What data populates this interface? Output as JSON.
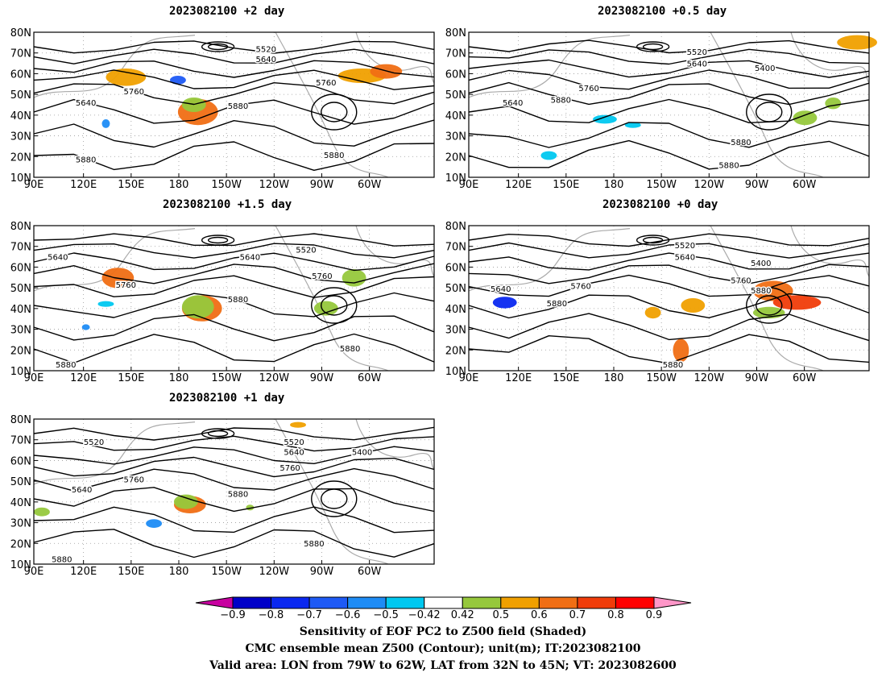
{
  "figure": {
    "caption_line1": "Sensitivity of EOF PC2 to Z500 field (Shaded)",
    "caption_line2": "CMC ensemble mean Z500 (Contour); unit(m); IT:2023082100",
    "caption_line3": "Valid area: LON from 79W to 62W, LAT from 32N to 45N; VT: 2023082600"
  },
  "axes": {
    "x_ticks": [
      "90E",
      "120E",
      "150E",
      "180",
      "150W",
      "120W",
      "90W",
      "60W"
    ],
    "y_ticks": [
      "10N",
      "20N",
      "30N",
      "40N",
      "50N",
      "60N",
      "70N",
      "80N"
    ]
  },
  "panels": [
    {
      "title": "2023082100 +2 day",
      "contour_labels": [
        "5520",
        "5640",
        "5640",
        "5760",
        "5760",
        "5880",
        "5880",
        "5880"
      ]
    },
    {
      "title": "2023082100 +0.5 day",
      "contour_labels": [
        "5520",
        "5640",
        "5400",
        "5640",
        "5880",
        "5760",
        "5880",
        "5880"
      ]
    },
    {
      "title": "2023082100 +1.5 day",
      "contour_labels": [
        "5640",
        "5640",
        "5520",
        "5760",
        "5760",
        "5880",
        "5880",
        "5880"
      ]
    },
    {
      "title": "2023082100 +0 day",
      "contour_labels": [
        "5520",
        "5640",
        "5400",
        "5640",
        "5760",
        "5760",
        "5880",
        "5880",
        "5880"
      ]
    },
    {
      "title": "2023082100 +1 day",
      "contour_labels": [
        "5520",
        "5520",
        "5640",
        "5400",
        "5760",
        "5640",
        "5760",
        "5880",
        "5880",
        "5880"
      ]
    }
  ],
  "colorbar": {
    "labels": [
      "−0.9",
      "−0.8",
      "−0.7",
      "−0.6",
      "−0.5",
      "−0.42",
      "0.42",
      "0.5",
      "0.6",
      "0.7",
      "0.8",
      "0.9"
    ],
    "colors": [
      "#c800a0",
      "#0000c8",
      "#0a28f0",
      "#1e5af5",
      "#1e8cf5",
      "#00c8f0",
      "#ffffff",
      "#96c83c",
      "#f0a000",
      "#f06e14",
      "#f03c0a",
      "#ff0000",
      "#ff96c8"
    ]
  }
}
